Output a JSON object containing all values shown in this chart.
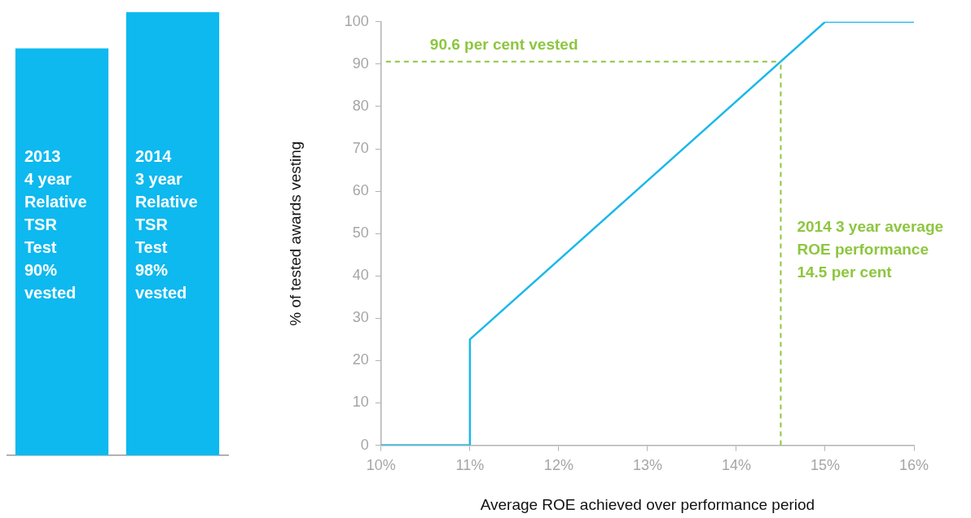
{
  "chart_data": [
    {
      "type": "bar",
      "categories": [
        null,
        null
      ],
      "values": [
        90,
        98
      ],
      "color": "#0db9ef",
      "value_labels": [
        "2013\n4 year\nRelative\nTSR\nTest\n90%\nvested",
        "2014\n3 year\nRelative\nTSR\nTest\n98%\nvested"
      ]
    },
    {
      "type": "line",
      "xlabel": "Average ROE achieved over performance period",
      "ylabel": "% of tested awards vesting",
      "x": [
        10,
        11,
        11,
        15,
        16
      ],
      "values": [
        0,
        0,
        25,
        100,
        100
      ],
      "color": "#1ab8ea",
      "xlim": [
        10,
        16
      ],
      "xticks": [
        {
          "value": 10,
          "label": "10%"
        },
        {
          "value": 11,
          "label": "11%"
        },
        {
          "value": 12,
          "label": "12%"
        },
        {
          "value": 13,
          "label": "13%"
        },
        {
          "value": 14,
          "label": "14%"
        },
        {
          "value": 15,
          "label": "15%"
        },
        {
          "value": 16,
          "label": "16%"
        }
      ],
      "ylim": [
        0,
        100
      ],
      "yticks": [
        0,
        10,
        20,
        30,
        40,
        50,
        60,
        70,
        80,
        90,
        100
      ],
      "grid": false,
      "legend": false,
      "marker": "none",
      "ref_lines": [
        {
          "axis": "y",
          "value": 90.6,
          "label": "90.6 per cent vested",
          "color": "#8dc63f",
          "line_style": "dashed"
        },
        {
          "axis": "x",
          "value": 14.5,
          "label": "2014 3 year average\nROE performance\n14.5 per cent",
          "color": "#8dc63f",
          "line_style": "dashed"
        }
      ]
    }
  ]
}
